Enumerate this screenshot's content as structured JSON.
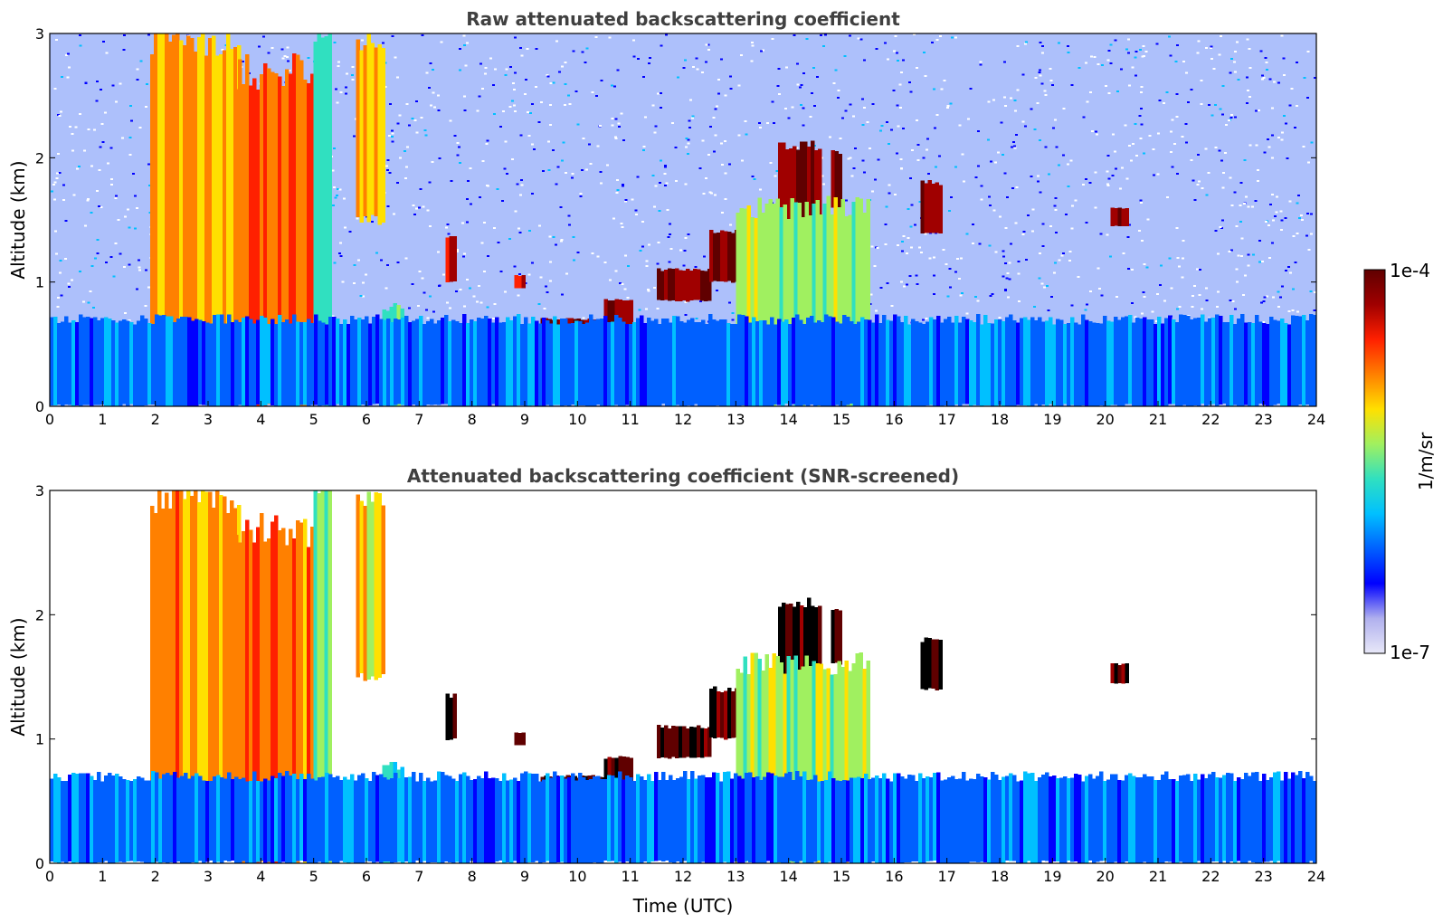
{
  "chart_data": [
    {
      "type": "heatmap",
      "title": "Raw attenuated backscattering coefficient",
      "xlabel": "",
      "ylabel": "Altitude (km)",
      "xlim": [
        0,
        24
      ],
      "ylim": [
        0,
        3
      ],
      "xticks": [
        "0",
        "1",
        "2",
        "3",
        "4",
        "5",
        "6",
        "7",
        "8",
        "9",
        "10",
        "11",
        "12",
        "13",
        "14",
        "15",
        "16",
        "17",
        "18",
        "19",
        "20",
        "21",
        "22",
        "23",
        "24"
      ],
      "yticks": [
        "0",
        "1",
        "2",
        "3"
      ],
      "screened": false,
      "features": [
        {
          "kind": "plume",
          "x": [
            1.9,
            3.6
          ],
          "top": 2.95,
          "bottom": 0.45,
          "value": 0.7
        },
        {
          "kind": "plume",
          "x": [
            3.5,
            5.0
          ],
          "top": 2.7,
          "bottom": 0.0,
          "value": 0.75
        },
        {
          "kind": "plume",
          "x": [
            5.8,
            6.3
          ],
          "top": 2.95,
          "bottom": 1.5,
          "value": 0.65
        },
        {
          "kind": "plume",
          "x": [
            5.0,
            5.3
          ],
          "top": 3.0,
          "bottom": 0.0,
          "value": 0.5
        },
        {
          "kind": "plume",
          "x": [
            6.3,
            6.7
          ],
          "top": 0.8,
          "bottom": 0.0,
          "value": 0.45
        },
        {
          "kind": "cloud",
          "x": [
            9.3,
            10.5
          ],
          "top": 0.7,
          "bottom": 0.5,
          "value": 0.95
        },
        {
          "kind": "cloud",
          "x": [
            10.5,
            11.0
          ],
          "top": 0.85,
          "bottom": 0.65,
          "value": 0.95
        },
        {
          "kind": "cloud",
          "x": [
            11.5,
            12.5
          ],
          "top": 1.1,
          "bottom": 0.85,
          "value": 0.97
        },
        {
          "kind": "cloud",
          "x": [
            12.5,
            13.7
          ],
          "top": 1.4,
          "bottom": 1.0,
          "value": 0.97
        },
        {
          "kind": "cloud",
          "x": [
            13.8,
            14.6
          ],
          "top": 2.1,
          "bottom": 1.4,
          "value": 0.95
        },
        {
          "kind": "cloud",
          "x": [
            14.8,
            15.0
          ],
          "top": 2.05,
          "bottom": 1.6,
          "value": 0.95
        },
        {
          "kind": "cloud",
          "x": [
            16.5,
            16.9
          ],
          "top": 1.8,
          "bottom": 1.4,
          "value": 0.95
        },
        {
          "kind": "cloud",
          "x": [
            20.1,
            20.4
          ],
          "top": 1.6,
          "bottom": 1.45,
          "value": 0.95
        },
        {
          "kind": "cloud",
          "x": [
            7.5,
            7.7
          ],
          "top": 1.35,
          "bottom": 1.0,
          "value": 0.9
        },
        {
          "kind": "cloud",
          "x": [
            8.8,
            9.0
          ],
          "top": 1.05,
          "bottom": 0.95,
          "value": 0.9
        },
        {
          "kind": "plume",
          "x": [
            13.0,
            15.5
          ],
          "top": 1.6,
          "bottom": 0.0,
          "value": 0.55
        },
        {
          "kind": "boundary_layer",
          "x": [
            0,
            24
          ],
          "top": 0.7,
          "bottom": 0.0,
          "value": 0.28
        }
      ]
    },
    {
      "type": "heatmap",
      "title": "Attenuated backscattering coefficient (SNR-screened)",
      "xlabel": "Time (UTC)",
      "ylabel": "Altitude (km)",
      "xlim": [
        0,
        24
      ],
      "ylim": [
        0,
        3
      ],
      "xticks": [
        "0",
        "1",
        "2",
        "3",
        "4",
        "5",
        "6",
        "7",
        "8",
        "9",
        "10",
        "11",
        "12",
        "13",
        "14",
        "15",
        "16",
        "17",
        "18",
        "19",
        "20",
        "21",
        "22",
        "23",
        "24"
      ],
      "yticks": [
        "0",
        "1",
        "2",
        "3"
      ],
      "screened": true,
      "features": [
        {
          "kind": "plume",
          "x": [
            1.9,
            3.6
          ],
          "top": 2.95,
          "bottom": 0.45,
          "value": 0.7
        },
        {
          "kind": "plume",
          "x": [
            3.5,
            5.0
          ],
          "top": 2.7,
          "bottom": 0.0,
          "value": 0.75
        },
        {
          "kind": "plume",
          "x": [
            5.8,
            6.3
          ],
          "top": 2.95,
          "bottom": 1.5,
          "value": 0.65
        },
        {
          "kind": "plume",
          "x": [
            5.0,
            5.3
          ],
          "top": 3.0,
          "bottom": 0.0,
          "value": 0.5
        },
        {
          "kind": "plume",
          "x": [
            6.3,
            6.7
          ],
          "top": 0.8,
          "bottom": 0.0,
          "value": 0.45
        },
        {
          "kind": "cloud",
          "x": [
            9.3,
            10.5
          ],
          "top": 0.7,
          "bottom": 0.5,
          "value": 1.0
        },
        {
          "kind": "cloud",
          "x": [
            10.5,
            11.0
          ],
          "top": 0.85,
          "bottom": 0.65,
          "value": 1.0
        },
        {
          "kind": "cloud",
          "x": [
            11.5,
            12.5
          ],
          "top": 1.1,
          "bottom": 0.85,
          "value": 1.0
        },
        {
          "kind": "cloud",
          "x": [
            12.5,
            13.7
          ],
          "top": 1.4,
          "bottom": 1.0,
          "value": 1.0
        },
        {
          "kind": "cloud",
          "x": [
            13.8,
            14.6
          ],
          "top": 2.1,
          "bottom": 1.4,
          "value": 1.0
        },
        {
          "kind": "cloud",
          "x": [
            14.8,
            15.0
          ],
          "top": 2.05,
          "bottom": 1.6,
          "value": 1.0
        },
        {
          "kind": "cloud",
          "x": [
            16.5,
            16.9
          ],
          "top": 1.8,
          "bottom": 1.4,
          "value": 1.0
        },
        {
          "kind": "cloud",
          "x": [
            20.1,
            20.4
          ],
          "top": 1.6,
          "bottom": 1.45,
          "value": 1.0
        },
        {
          "kind": "cloud",
          "x": [
            7.5,
            7.7
          ],
          "top": 1.35,
          "bottom": 1.0,
          "value": 1.0
        },
        {
          "kind": "cloud",
          "x": [
            8.8,
            9.0
          ],
          "top": 1.05,
          "bottom": 0.95,
          "value": 1.0
        },
        {
          "kind": "plume",
          "x": [
            13.0,
            15.5
          ],
          "top": 1.6,
          "bottom": 0.0,
          "value": 0.55
        },
        {
          "kind": "boundary_layer",
          "x": [
            0,
            24
          ],
          "top": 0.7,
          "bottom": 0.0,
          "value": 0.28
        }
      ]
    }
  ],
  "colorbar": {
    "label": "1/m/sr",
    "max_label": "1e-4",
    "min_label": "1e-7",
    "colormap": "jet",
    "colors": [
      "#e8e8f8",
      "#b0b0ee",
      "#0000ff",
      "#0060ff",
      "#00c0ff",
      "#30e0c0",
      "#a0f060",
      "#ffe000",
      "#ff8000",
      "#ff2000",
      "#a00000",
      "#600000"
    ]
  }
}
